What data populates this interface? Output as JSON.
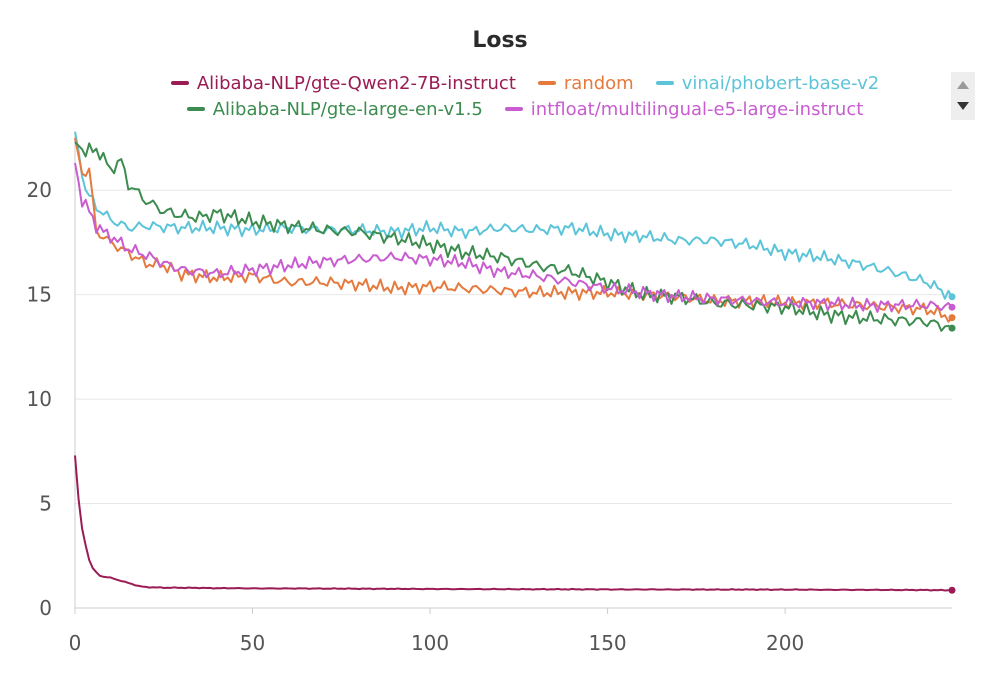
{
  "chart_data": {
    "type": "line",
    "title": "Loss",
    "xlabel": "",
    "ylabel": "",
    "xlim": [
      0,
      247
    ],
    "ylim": [
      0,
      22.5
    ],
    "xticks": [
      0,
      50,
      100,
      150,
      200
    ],
    "yticks": [
      0,
      5,
      10,
      15,
      20
    ],
    "grid": true,
    "legend_position": "top",
    "series": [
      {
        "name": "Alibaba-NLP/gte-Qwen2-7B-instruct",
        "color": "#9b1b55",
        "x": [
          0,
          1,
          2,
          3,
          4,
          5,
          6,
          7,
          8,
          10,
          12,
          15,
          18,
          20,
          25,
          30,
          40,
          50,
          70,
          100,
          150,
          200,
          240,
          247
        ],
        "y": [
          7.3,
          5.2,
          3.8,
          3.0,
          2.3,
          1.9,
          1.7,
          1.55,
          1.5,
          1.45,
          1.35,
          1.2,
          1.05,
          1.0,
          0.97,
          0.97,
          0.95,
          0.94,
          0.93,
          0.91,
          0.89,
          0.88,
          0.86,
          0.85
        ]
      },
      {
        "name": "random",
        "color": "#e57a3c",
        "x": [
          0,
          2,
          4,
          6,
          8,
          10,
          15,
          20,
          25,
          30,
          35,
          40,
          50,
          60,
          70,
          80,
          90,
          100,
          110,
          120,
          130,
          140,
          150,
          160,
          170,
          180,
          190,
          200,
          210,
          220,
          230,
          240,
          247
        ],
        "y": [
          22.5,
          20.8,
          21.0,
          18.0,
          17.8,
          17.5,
          17.0,
          16.5,
          16.4,
          16.0,
          15.9,
          15.8,
          15.9,
          15.6,
          15.6,
          15.5,
          15.3,
          15.4,
          15.3,
          15.2,
          15.1,
          15.1,
          15.1,
          15.0,
          14.9,
          14.7,
          14.7,
          14.6,
          14.6,
          14.5,
          14.4,
          14.3,
          13.9
        ]
      },
      {
        "name": "vinai/phobert-base-v2",
        "color": "#5bc4d9",
        "x": [
          0,
          3,
          6,
          10,
          15,
          20,
          30,
          40,
          50,
          60,
          70,
          80,
          90,
          100,
          110,
          120,
          130,
          140,
          150,
          160,
          170,
          180,
          190,
          200,
          210,
          220,
          230,
          240,
          247
        ],
        "y": [
          22.8,
          20.0,
          19.2,
          18.6,
          18.2,
          18.3,
          18.2,
          18.2,
          18.1,
          18.2,
          18.1,
          18.1,
          18.0,
          18.2,
          18.0,
          18.2,
          18.1,
          18.2,
          17.9,
          17.8,
          17.6,
          17.6,
          17.4,
          17.0,
          16.8,
          16.5,
          16.1,
          15.6,
          14.9
        ]
      },
      {
        "name": "Alibaba-NLP/gte-large-en-v1.5",
        "color": "#3d8c4f",
        "x": [
          0,
          3,
          6,
          10,
          13,
          15,
          20,
          25,
          30,
          35,
          40,
          50,
          60,
          70,
          80,
          90,
          100,
          110,
          120,
          130,
          140,
          150,
          160,
          170,
          180,
          190,
          200,
          210,
          220,
          230,
          240,
          247
        ],
        "y": [
          22.3,
          21.8,
          22.0,
          21.0,
          21.4,
          20.3,
          19.5,
          19.0,
          18.8,
          18.7,
          18.9,
          18.5,
          18.3,
          18.1,
          18.0,
          17.7,
          17.4,
          17.0,
          16.8,
          16.4,
          16.1,
          15.6,
          15.0,
          14.9,
          14.6,
          14.5,
          14.4,
          14.1,
          13.9,
          13.8,
          13.7,
          13.4
        ]
      },
      {
        "name": "intfloat/multilingual-e5-large-instruct",
        "color": "#c85cd0",
        "x": [
          0,
          2,
          4,
          6,
          8,
          10,
          15,
          20,
          25,
          30,
          40,
          50,
          60,
          70,
          80,
          90,
          100,
          110,
          120,
          130,
          140,
          150,
          160,
          170,
          180,
          190,
          200,
          210,
          220,
          230,
          240,
          247
        ],
        "y": [
          21.3,
          19.5,
          19.0,
          18.3,
          18.0,
          17.8,
          17.2,
          16.9,
          16.5,
          16.2,
          16.0,
          16.2,
          16.4,
          16.6,
          16.7,
          16.8,
          16.7,
          16.5,
          16.1,
          15.9,
          15.6,
          15.3,
          15.1,
          14.9,
          14.8,
          14.7,
          14.6,
          14.6,
          14.5,
          14.5,
          14.5,
          14.4
        ]
      }
    ]
  }
}
